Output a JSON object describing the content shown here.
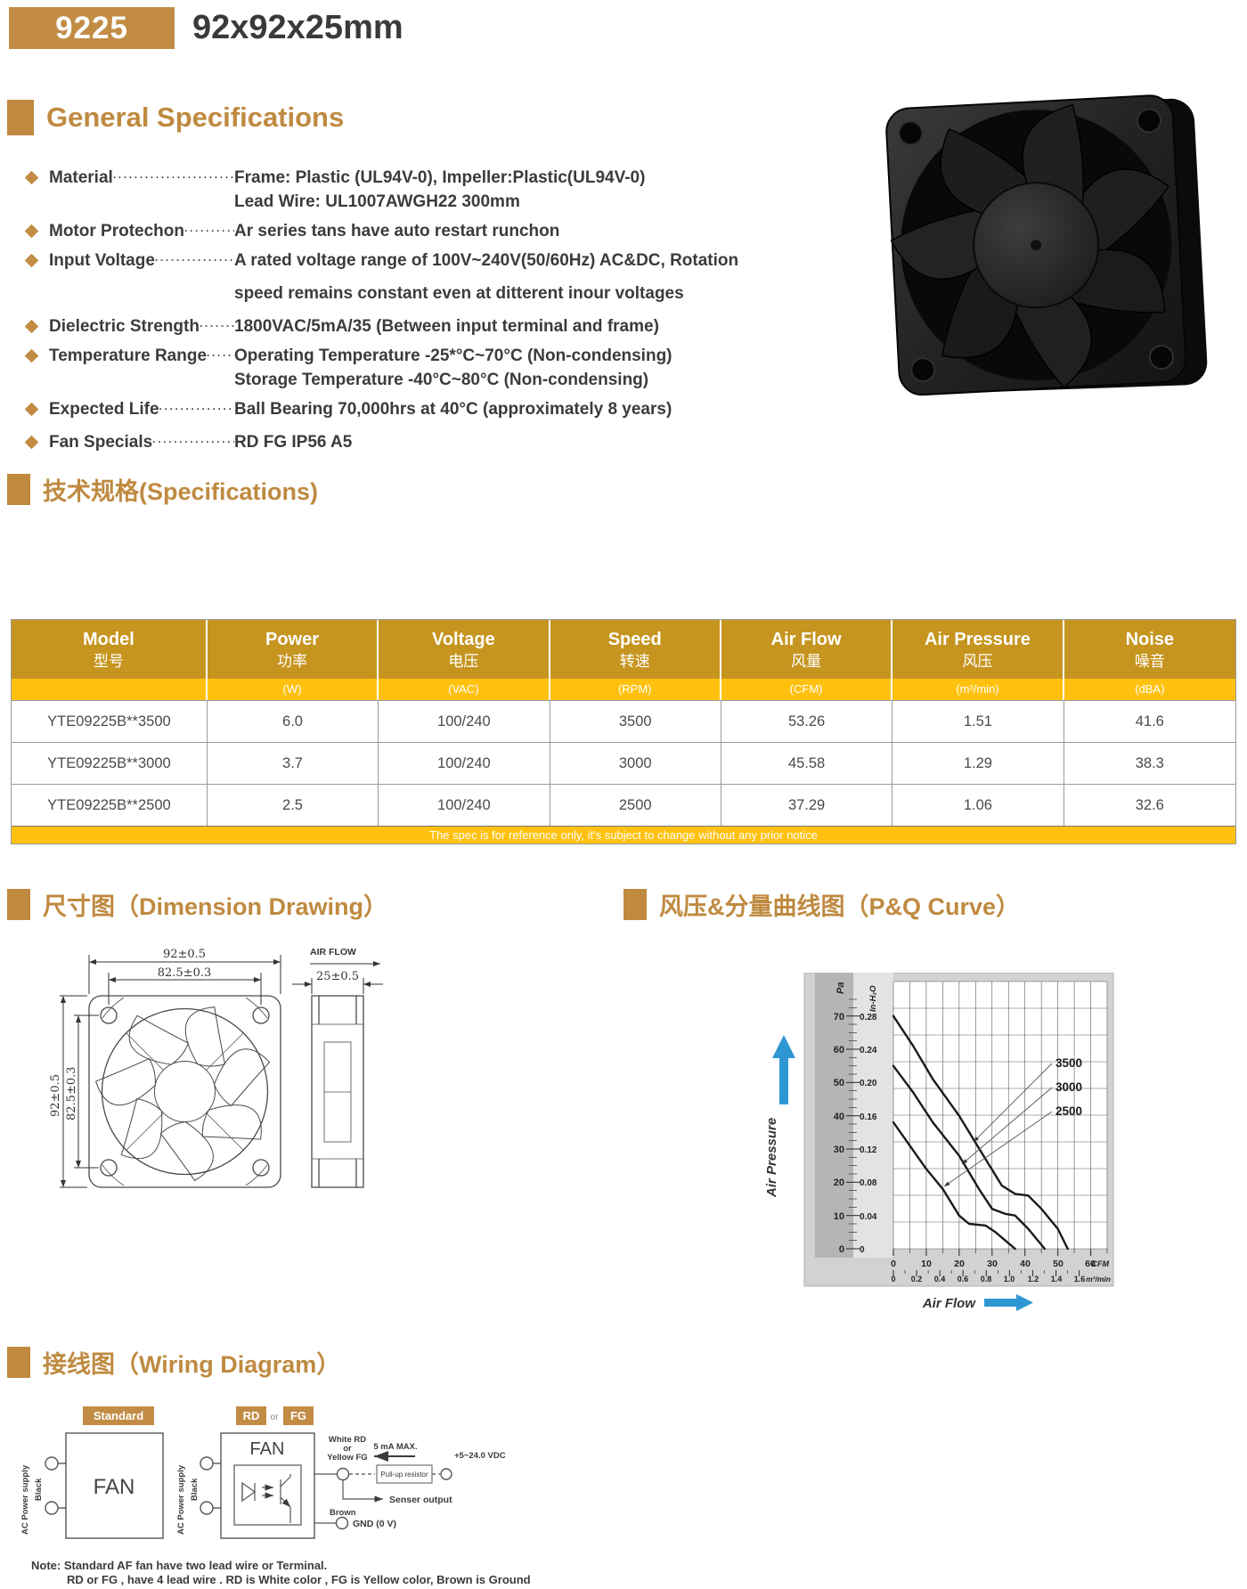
{
  "header": {
    "model_badge": "9225",
    "size_title": "92x92x25mm"
  },
  "general": {
    "title": "General Specifications",
    "items": [
      {
        "label": "Material",
        "line1": "Frame: Plastic (UL94V-0), Impeller:Plastic(UL94V-0)",
        "line2": "Lead Wire: UL1007AWGH22 300mm"
      },
      {
        "label": "Motor Protechon",
        "line1": "Ar series tans have auto restart runchon"
      },
      {
        "label": "Input Voltage",
        "line1": "A rated voltage range of 100V~240V(50/60Hz) AC&DC, Rotation",
        "line2": "speed remains constant even at ditterent inour voltages"
      },
      {
        "label": "Dielectric Strength",
        "line1": "1800VAC/5mA/35 (Between input terminal and frame)"
      },
      {
        "label": "Temperature Range",
        "line1": "Operating Temperature -25*°C~70°C (Non-condensing)",
        "line2": "Storage Temperature -40°C~80°C (Non-condensing)"
      },
      {
        "label": "Expected Life",
        "line1": "Ball Bearing 70,000hrs at 40°C (approximately 8 years)"
      },
      {
        "label": "Fan Specials",
        "line1": "RD FG IP56 A5"
      }
    ]
  },
  "spec_table": {
    "title": "技术规格(Specifications)",
    "columns": [
      {
        "en": "Model",
        "zh": "型号",
        "unit": ""
      },
      {
        "en": "Power",
        "zh": "功率",
        "unit": "(W)"
      },
      {
        "en": "Voltage",
        "zh": "电压",
        "unit": "(VAC)"
      },
      {
        "en": "Speed",
        "zh": "转速",
        "unit": "(RPM)"
      },
      {
        "en": "Air Flow",
        "zh": "风量",
        "unit": "(CFM)"
      },
      {
        "en": "Air Pressure",
        "zh": "风压",
        "unit": "(m³/min)"
      },
      {
        "en": "Noise",
        "zh": "噪音",
        "unit": "(dBA)"
      }
    ],
    "rows": [
      {
        "model": "YTE09225B**3500",
        "power": "6.0",
        "voltage": "100/240",
        "speed": "3500",
        "airflow": "53.26",
        "pressure": "1.51",
        "noise": "41.6"
      },
      {
        "model": "YTE09225B**3000",
        "power": "3.7",
        "voltage": "100/240",
        "speed": "3000",
        "airflow": "45.58",
        "pressure": "1.29",
        "noise": "38.3"
      },
      {
        "model": "YTE09225B**2500",
        "power": "2.5",
        "voltage": "100/240",
        "speed": "2500",
        "airflow": "37.29",
        "pressure": "1.06",
        "noise": "32.6"
      }
    ],
    "footnote": "The spec is for reference only, it's subject to change without any prior notice"
  },
  "dimension": {
    "title": "尺寸图（Dimension Drawing）",
    "width_outer": "92±0.5",
    "hole_pitch_h": "82.5±0.3",
    "height_outer": "92±0.5",
    "hole_pitch_v": "82.5±0.3",
    "depth": "25±0.5",
    "airflow_label": "AIR FLOW"
  },
  "pq": {
    "title": "风压&分量曲线图（P&Q Curve）",
    "air_pressure_label": "Air Pressure",
    "air_flow_label": "Air Flow"
  },
  "chart_data": {
    "type": "line",
    "title": "P&Q Curve",
    "xlabel": "Air Flow",
    "ylabel": "Air Pressure",
    "x_units": [
      "CFM",
      "m³/min"
    ],
    "y_units": [
      "Pa",
      "In-H₂O"
    ],
    "xlim_cfm": [
      0,
      65
    ],
    "ylim_pa": [
      0,
      75
    ],
    "grid": true,
    "legend_position": "right-inline-labels",
    "y_ticks_pa_labels": [
      "0",
      "10",
      "20",
      "30",
      "40",
      "50",
      "60",
      "70"
    ],
    "y_ticks_inh2o_labels": [
      "0",
      "0.04",
      "0.08",
      "0.12",
      "0.16",
      "0.20",
      "0.24",
      "0.28"
    ],
    "x_ticks_cfm_labels": [
      "0",
      "10",
      "20",
      "30",
      "40",
      "50",
      "60"
    ],
    "x_ticks_m3min_labels": [
      "0",
      "0.2",
      "0.4",
      "0.6",
      "0.8",
      "1.0",
      "1.2",
      "1.4",
      "1.6"
    ],
    "series": [
      {
        "name": "3500",
        "points_cfm_pa": [
          [
            0,
            70
          ],
          [
            6,
            61
          ],
          [
            12,
            51
          ],
          [
            20,
            40
          ],
          [
            28,
            27
          ],
          [
            33,
            19
          ],
          [
            37,
            16.5
          ],
          [
            41,
            16
          ],
          [
            45,
            12
          ],
          [
            50,
            6
          ],
          [
            53,
            0
          ]
        ]
      },
      {
        "name": "3000",
        "points_cfm_pa": [
          [
            0,
            55
          ],
          [
            6,
            47
          ],
          [
            12,
            38
          ],
          [
            20,
            28
          ],
          [
            26,
            18
          ],
          [
            30,
            12
          ],
          [
            34,
            10.5
          ],
          [
            37,
            10
          ],
          [
            41,
            6
          ],
          [
            46,
            0
          ]
        ]
      },
      {
        "name": "2500",
        "points_cfm_pa": [
          [
            0,
            38
          ],
          [
            5,
            31
          ],
          [
            10,
            24
          ],
          [
            15,
            18
          ],
          [
            20,
            10
          ],
          [
            23,
            7.5
          ],
          [
            28,
            7
          ],
          [
            31,
            5
          ],
          [
            37,
            0
          ]
        ]
      }
    ]
  },
  "wiring": {
    "title": "接线图（Wiring Diagram）",
    "standard_label": "Standard",
    "rd_label": "RD",
    "or_label": "or",
    "fg_label": "FG",
    "fan_label": "FAN",
    "ac_supply_label": "AC Power supply",
    "black_label": "Black",
    "white_rd_line1": "White  RD",
    "white_rd_line2": "or",
    "white_rd_line3": "Yellow FG",
    "ma_max": "5 mA MAX.",
    "vdc": "+5~24.0 VDC",
    "pullup": "Pull-up resistor",
    "sensor_output": "Senser output",
    "brown": "Brown",
    "gnd": "GND (0 V)",
    "note_line1": "Note: Standard AF fan have two lead wire or Terminal.",
    "note_line2": "RD or FG , have 4 lead wire . RD is White color , FG is Yellow color, Brown is Ground"
  },
  "colors": {
    "gold": "#bf8a40",
    "table_header_gold": "#c6951f",
    "yellow": "#ffc10e",
    "blue": "#2e97d3",
    "text_dark": "#3c3c3c"
  }
}
